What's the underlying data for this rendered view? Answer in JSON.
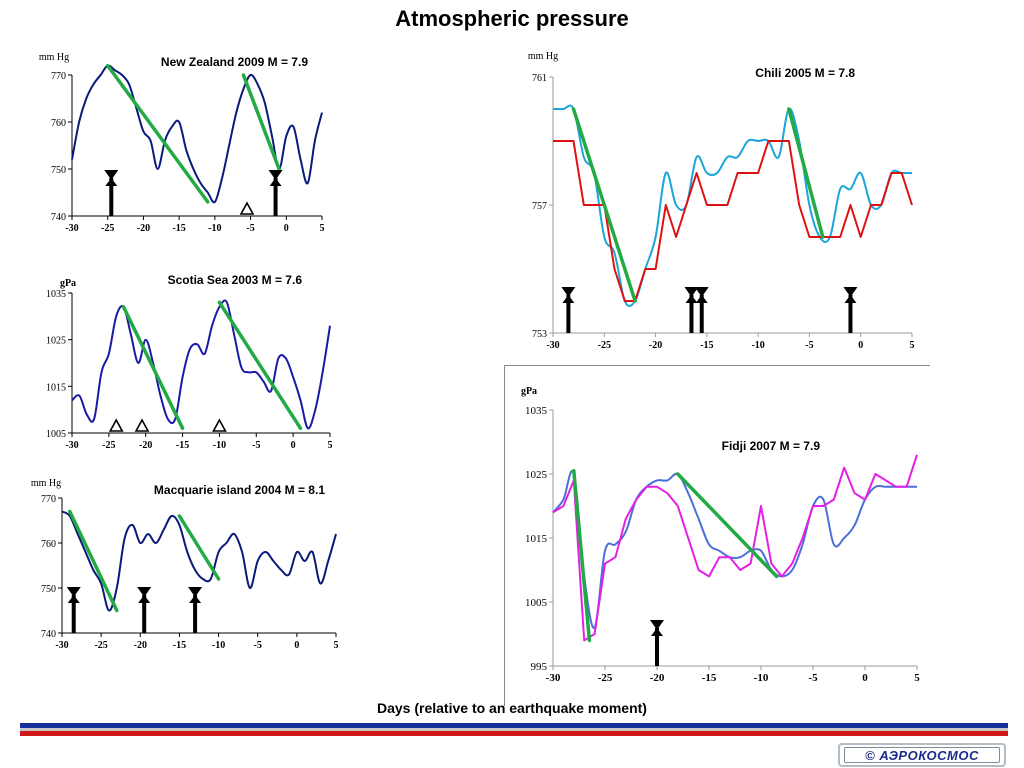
{
  "page": {
    "title": "Atmospheric pressure",
    "x_caption": "Days (relative to an earthquake moment)",
    "logo_text": "© АЭРОКОСМОС",
    "stripe_colors": [
      "#1a2f9e",
      "#c8c8c8",
      "#d01818"
    ]
  },
  "chart_data": [
    {
      "type": "line",
      "id": "nz",
      "title": "New Zealand 2009 M = 7.9",
      "ylabel": "mm Hg",
      "xlim": [
        -30,
        5
      ],
      "ylim": [
        740,
        770
      ],
      "xticks": [
        -30,
        -25,
        -20,
        -15,
        -10,
        -5,
        0,
        5
      ],
      "yticks": [
        740,
        750,
        760,
        770
      ],
      "series": [
        {
          "color": "#0a1a7a",
          "smooth": true,
          "x": [
            -30,
            -29,
            -28,
            -27,
            -26,
            -25,
            -24,
            -23,
            -22,
            -21,
            -20,
            -19,
            -18,
            -17,
            -16,
            -15,
            -14,
            -13,
            -12,
            -11,
            -10,
            -9,
            -8,
            -7,
            -6,
            -5,
            -4,
            -3,
            -2,
            -1,
            0,
            1,
            2,
            3,
            4,
            5
          ],
          "y": [
            752,
            760,
            765,
            768,
            770,
            772,
            771,
            770,
            768,
            763,
            758,
            756,
            750,
            756,
            759,
            760,
            754,
            750,
            747,
            745,
            743,
            748,
            755,
            762,
            767,
            770,
            768,
            764,
            757,
            750,
            757,
            759,
            752,
            747,
            756,
            762
          ]
        }
      ],
      "trend_segments": [
        {
          "color": "#22aa44",
          "points": [
            [
              -25,
              772
            ],
            [
              -11,
              743
            ]
          ]
        },
        {
          "color": "#22aa44",
          "points": [
            [
              -6,
              770
            ],
            [
              -1,
              750
            ]
          ]
        }
      ],
      "arrows_down": [
        -24.5,
        -1.5
      ],
      "triangles": [
        -5.5
      ]
    },
    {
      "type": "line",
      "id": "scotia",
      "title": "Scotia Sea  2003   M = 7.6",
      "ylabel": "gPa",
      "xlim": [
        -30,
        5
      ],
      "ylim": [
        1005,
        1035
      ],
      "xticks": [
        -30,
        -25,
        -20,
        -15,
        -10,
        -5,
        0,
        5
      ],
      "yticks": [
        1005,
        1015,
        1025,
        1035
      ],
      "series": [
        {
          "color": "#1a1aa6",
          "smooth": true,
          "x": [
            -30,
            -29,
            -28,
            -27,
            -26,
            -25,
            -24,
            -23,
            -22,
            -21,
            -20,
            -19,
            -18,
            -17,
            -16,
            -15,
            -14,
            -13,
            -12,
            -11,
            -10,
            -9,
            -8,
            -7,
            -6,
            -5,
            -4,
            -3,
            -2,
            -1,
            0,
            1,
            2,
            3,
            4,
            5
          ],
          "y": [
            1012,
            1013,
            1009,
            1008,
            1018,
            1022,
            1030,
            1032,
            1026,
            1020,
            1025,
            1020,
            1013,
            1008,
            1008,
            1017,
            1023,
            1024,
            1022,
            1028,
            1032,
            1033,
            1026,
            1019,
            1018,
            1018,
            1016,
            1014,
            1021,
            1021,
            1017,
            1012,
            1006,
            1010,
            1018,
            1028
          ]
        }
      ],
      "trend_segments": [
        {
          "color": "#22aa44",
          "points": [
            [
              -23,
              1032
            ],
            [
              -15,
              1006
            ]
          ]
        },
        {
          "color": "#22aa44",
          "points": [
            [
              -10,
              1033
            ],
            [
              1,
              1006
            ]
          ]
        }
      ],
      "arrows_down": [],
      "triangles": [
        -24,
        -20.5,
        -10
      ]
    },
    {
      "type": "line",
      "id": "macquarie",
      "title": "Macquarie island 2004 M = 8.1",
      "ylabel": "mm Hg",
      "xlim": [
        -30,
        5
      ],
      "ylim": [
        740,
        770
      ],
      "xticks": [
        -30,
        -25,
        -20,
        -15,
        -10,
        -5,
        0,
        5
      ],
      "yticks": [
        740,
        750,
        760,
        770
      ],
      "series": [
        {
          "color": "#0a1a7a",
          "smooth": true,
          "x": [
            -30,
            -29,
            -28,
            -27,
            -26,
            -25,
            -24,
            -23,
            -22,
            -21,
            -20,
            -19,
            -18,
            -17,
            -16,
            -15,
            -14,
            -13,
            -12,
            -11,
            -10,
            -9,
            -8,
            -7,
            -6,
            -5,
            -4,
            -3,
            -2,
            -1,
            0,
            1,
            2,
            3,
            4,
            5
          ],
          "y": [
            767,
            766,
            762,
            758,
            754,
            751,
            745,
            750,
            761,
            764,
            760,
            762,
            760,
            763,
            766,
            764,
            758,
            754,
            752,
            752,
            758,
            760,
            762,
            758,
            750,
            756,
            758,
            756,
            754,
            753,
            758,
            756,
            758,
            751,
            756,
            762
          ]
        }
      ],
      "trend_segments": [
        {
          "color": "#22aa44",
          "points": [
            [
              -29,
              767
            ],
            [
              -23,
              745
            ]
          ]
        },
        {
          "color": "#22aa44",
          "points": [
            [
              -15,
              766
            ],
            [
              -10,
              752
            ]
          ]
        }
      ],
      "arrows_down": [
        -28.5,
        -19.5,
        -13
      ],
      "triangles": []
    },
    {
      "type": "line",
      "id": "chili",
      "title": "Chili  2005  M = 7.8",
      "ylabel": "mm Hg",
      "xlim": [
        -30,
        5
      ],
      "ylim": [
        753,
        761
      ],
      "xticks": [
        -30,
        -25,
        -20,
        -15,
        -10,
        -5,
        0,
        5
      ],
      "yticks": [
        753,
        757,
        761
      ],
      "series": [
        {
          "color": "#1aa6d9",
          "smooth": true,
          "x": [
            -30,
            -29,
            -28,
            -27,
            -26,
            -25,
            -24,
            -23,
            -22,
            -21,
            -20,
            -19,
            -18,
            -17,
            -16,
            -15,
            -14,
            -13,
            -12,
            -11,
            -10,
            -9,
            -8,
            -7,
            -6,
            -5,
            -4,
            -3,
            -2,
            -1,
            0,
            1,
            2,
            3,
            4,
            5
          ],
          "y": [
            760.0,
            760.0,
            760.0,
            758.5,
            758.0,
            756.0,
            755.5,
            754.0,
            754.0,
            755.0,
            756.0,
            758.0,
            757.0,
            757.0,
            758.5,
            758.0,
            758.0,
            758.5,
            758.5,
            759.0,
            759.0,
            759.0,
            758.5,
            760.0,
            759.0,
            757.0,
            756.0,
            756.0,
            757.5,
            757.5,
            758.0,
            757.0,
            757.0,
            758.0,
            758.0,
            758.0
          ]
        },
        {
          "color": "#dd1111",
          "smooth": false,
          "x": [
            -30,
            -29,
            -28,
            -27,
            -26,
            -25,
            -24,
            -23,
            -22,
            -21,
            -20,
            -19,
            -18,
            -17,
            -16,
            -15,
            -14,
            -13,
            -12,
            -11,
            -10,
            -9,
            -8,
            -7,
            -6,
            -5,
            -4,
            -3,
            -2,
            -1,
            0,
            1,
            2,
            3,
            4,
            5
          ],
          "y": [
            759.0,
            759.0,
            759.0,
            757.0,
            757.0,
            757.0,
            755.0,
            754.0,
            754.0,
            755.0,
            755.0,
            757.0,
            756.0,
            757.0,
            758.0,
            757.0,
            757.0,
            757.0,
            758.0,
            758.0,
            758.0,
            759.0,
            759.0,
            759.0,
            757.0,
            756.0,
            756.0,
            756.0,
            756.0,
            757.0,
            756.0,
            757.0,
            757.0,
            758.0,
            758.0,
            757.0
          ]
        }
      ],
      "trend_segments": [
        {
          "color": "#22aa44",
          "points": [
            [
              -28,
              760
            ],
            [
              -22,
              754
            ]
          ]
        },
        {
          "color": "#22aa44",
          "points": [
            [
              -7,
              760
            ],
            [
              -3.7,
              756
            ]
          ]
        }
      ],
      "arrows_down": [
        -28.5,
        -16.5,
        -15.5,
        -1
      ],
      "triangles": []
    },
    {
      "type": "line",
      "id": "fiji",
      "title": "Fidji  2007  M = 7.9",
      "ylabel": "gPa",
      "xlim": [
        -30,
        5
      ],
      "ylim": [
        995,
        1035
      ],
      "xticks": [
        -30,
        -25,
        -20,
        -15,
        -10,
        -5,
        0,
        5
      ],
      "yticks": [
        995,
        1005,
        1015,
        1025,
        1035
      ],
      "series": [
        {
          "color": "#4a6fd8",
          "smooth": true,
          "x": [
            -30,
            -29,
            -28,
            -27,
            -26,
            -25,
            -24,
            -23,
            -22,
            -21,
            -20,
            -19,
            -18,
            -17,
            -16,
            -15,
            -14,
            -13,
            -12,
            -11,
            -10,
            -9,
            -8,
            -7,
            -6,
            -5,
            -4,
            -3,
            -2,
            -1,
            0,
            1,
            2,
            3,
            4,
            5
          ],
          "y": [
            1019,
            1021,
            1025,
            1009,
            1001,
            1013,
            1014,
            1016,
            1021,
            1023,
            1024,
            1024,
            1025,
            1022,
            1018,
            1014,
            1013,
            1012,
            1012,
            1013,
            1013,
            1010,
            1009,
            1010,
            1014,
            1020,
            1021,
            1014,
            1015,
            1017,
            1021,
            1023,
            1023,
            1023,
            1023,
            1023
          ]
        },
        {
          "color": "#e61ee6",
          "smooth": false,
          "x": [
            -30,
            -29,
            -28,
            -27,
            -26,
            -25,
            -24,
            -23,
            -22,
            -21,
            -20,
            -19,
            -18,
            -17,
            -16,
            -15,
            -14,
            -13,
            -12,
            -11,
            -10,
            -9,
            -8,
            -7,
            -6,
            -5,
            -4,
            -3,
            -2,
            -1,
            0,
            1,
            2,
            3,
            4,
            5
          ],
          "y": [
            1019,
            1020,
            1024,
            999,
            1000,
            1011,
            1012,
            1018,
            1021,
            1023,
            1023,
            1022,
            1020,
            1015,
            1010,
            1009,
            1012,
            1012,
            1010,
            1011,
            1020,
            1011,
            1009,
            1011,
            1015,
            1020,
            1020,
            1021,
            1026,
            1022,
            1021,
            1025,
            1024,
            1023,
            1023,
            1028
          ]
        }
      ],
      "trend_segments": [
        {
          "color": "#22aa44",
          "points": [
            [
              -28,
              1025.5
            ],
            [
              -26.5,
              999
            ]
          ]
        },
        {
          "color": "#22aa44",
          "points": [
            [
              -18,
              1025
            ],
            [
              -8.5,
              1009
            ]
          ]
        }
      ],
      "arrows_down": [
        -20
      ],
      "triangles": []
    }
  ]
}
